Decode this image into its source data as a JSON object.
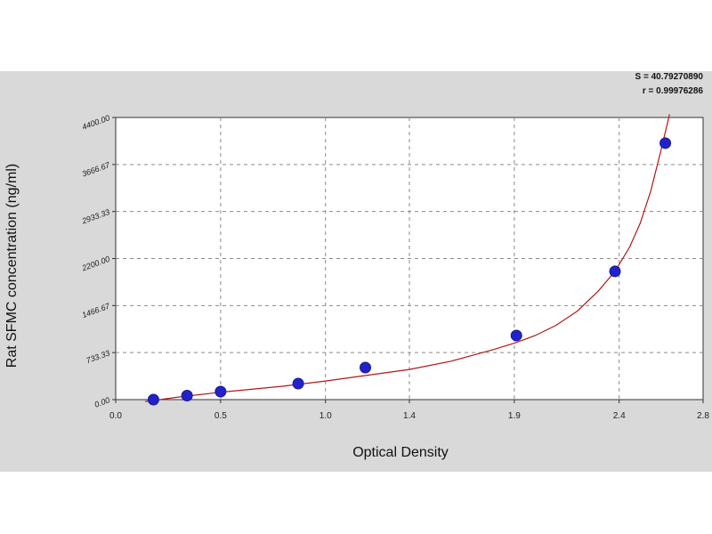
{
  "chart_data": {
    "type": "scatter",
    "xlabel": "Optical Density",
    "ylabel": "Rat SFMC concentration (ng/ml)",
    "xlim": [
      0.0,
      2.8
    ],
    "ylim": [
      0,
      4400
    ],
    "x_ticks": [
      "0.0",
      "0.5",
      "1.0",
      "1.4",
      "1.9",
      "2.4",
      "2.8"
    ],
    "x_tick_values": [
      0.0,
      0.5,
      1.0,
      1.4,
      1.9,
      2.4,
      2.8
    ],
    "y_ticks": [
      "0.00",
      "733.33",
      "1466.67",
      "2200.00",
      "2933.33",
      "3666.67",
      "4400.00"
    ],
    "y_tick_values": [
      0,
      733.33,
      1466.67,
      2200,
      2933.33,
      3666.67,
      4400
    ],
    "grid": true,
    "series": [
      {
        "x": [
          0.18,
          0.34,
          0.5,
          0.87,
          1.19,
          1.91,
          2.38,
          2.62
        ],
        "y": [
          0,
          62.5,
          125,
          250,
          500,
          1000,
          2000,
          4000
        ],
        "color": "#2222cc"
      }
    ],
    "fit_curve": {
      "x": [
        0.14,
        0.3,
        0.5,
        0.8,
        1.0,
        1.2,
        1.4,
        1.6,
        1.8,
        1.9,
        2.0,
        2.1,
        2.2,
        2.3,
        2.38,
        2.45,
        2.5,
        2.55,
        2.6,
        2.64
      ],
      "y": [
        -30,
        40,
        115,
        210,
        290,
        380,
        470,
        600,
        780,
        880,
        1000,
        1160,
        1380,
        1690,
        2000,
        2380,
        2750,
        3250,
        3900,
        4450
      ],
      "color": "#b01818"
    },
    "stats": [
      "S = 40.79270890",
      "r = 0.99976286"
    ]
  }
}
